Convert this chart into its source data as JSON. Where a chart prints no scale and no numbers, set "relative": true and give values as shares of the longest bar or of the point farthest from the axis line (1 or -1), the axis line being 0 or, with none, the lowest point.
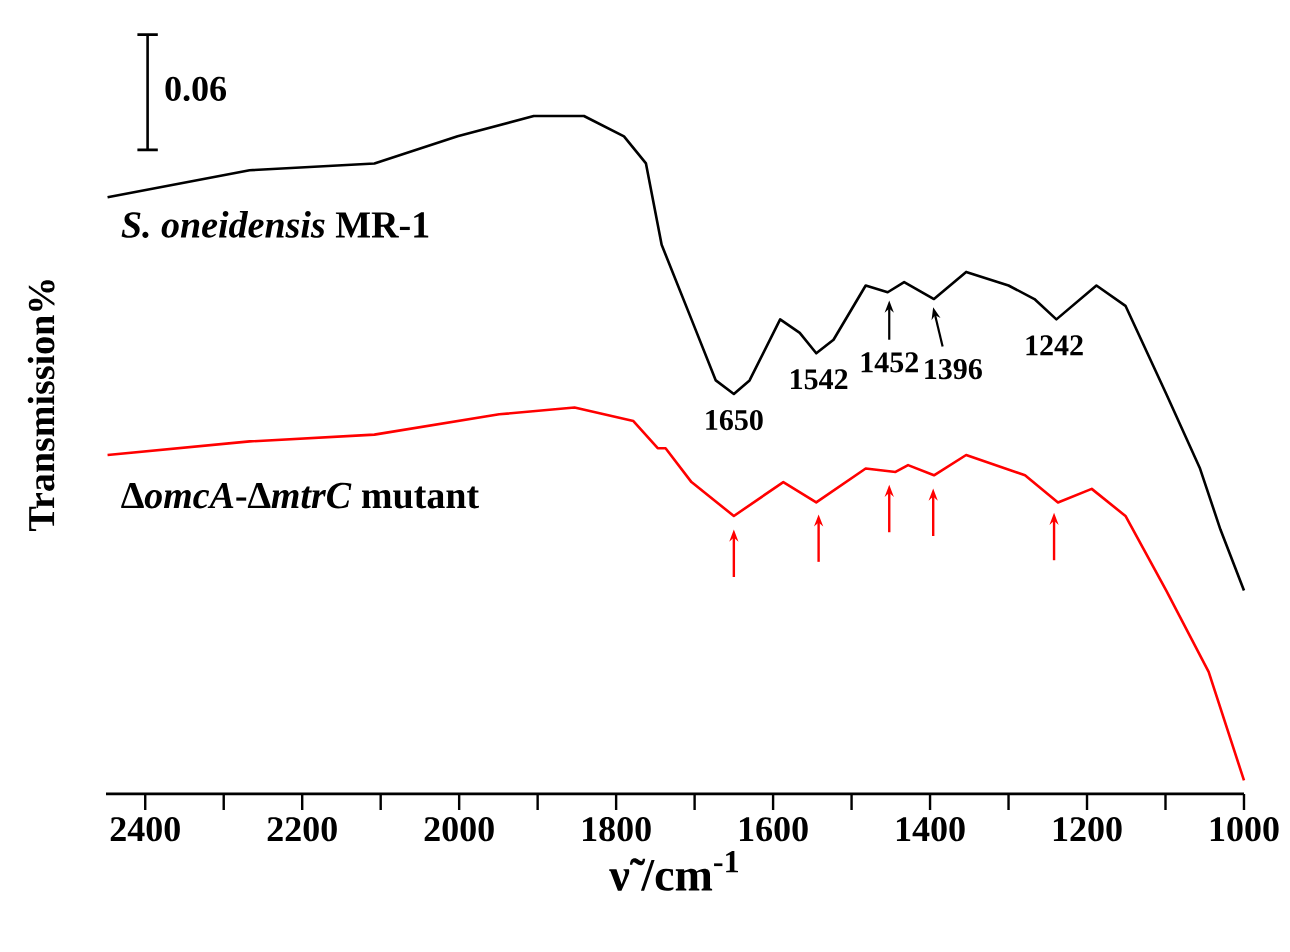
{
  "chart_data": {
    "type": "line",
    "relative": true,
    "xlabel": "ν̃ /cm$^{-1}$",
    "ylabel": "Transmission%",
    "xlim": [
      2450,
      1000
    ],
    "xticks": [
      2400,
      {
        "value": 2300,
        "label": null
      },
      2200,
      {
        "value": 2100,
        "label": null
      },
      2000,
      {
        "value": 1900,
        "label": null
      },
      1800,
      {
        "value": 1700,
        "label": null
      },
      1600,
      {
        "value": 1500,
        "label": null
      },
      1400,
      {
        "value": 1300,
        "label": null
      },
      1200,
      {
        "value": 1100,
        "label": null
      },
      1000
    ],
    "legend": false,
    "marker": "none",
    "line_style": "solid",
    "series": [
      {
        "name": "*S. oneidensis* MR-1",
        "color": "#000000",
        "x": [
          2448,
          2267,
          2108,
          2002,
          1905,
          1841,
          1790,
          1762,
          1742,
          1704,
          1673,
          1650,
          1630,
          1591,
          1566,
          1545,
          1523,
          1482,
          1454,
          1433,
          1395,
          1354,
          1300,
          1267,
          1239,
          1188,
          1151,
          1099,
          1056,
          1030,
          1000
        ],
        "values": [
          0.88,
          0.92,
          0.93,
          0.97,
          1.0,
          1.0,
          0.97,
          0.93,
          0.81,
          0.7,
          0.61,
          0.59,
          0.61,
          0.7,
          0.68,
          0.65,
          0.67,
          0.75,
          0.74,
          0.755,
          0.73,
          0.77,
          0.75,
          0.73,
          0.7,
          0.75,
          0.72,
          0.59,
          0.48,
          0.39,
          0.3
        ]
      },
      {
        "name": "∆*omcA*-∆*mtrC* mutant",
        "color": "#ff0000",
        "x": [
          2448,
          2267,
          2108,
          1949,
          1853,
          1778,
          1747,
          1737,
          1704,
          1650,
          1587,
          1545,
          1482,
          1444,
          1428,
          1395,
          1354,
          1279,
          1237,
          1194,
          1151,
          1099,
          1045,
          1000
        ],
        "values": [
          0.5,
          0.52,
          0.53,
          0.56,
          0.57,
          0.55,
          0.51,
          0.51,
          0.46,
          0.41,
          0.46,
          0.43,
          0.48,
          0.475,
          0.485,
          0.47,
          0.5,
          0.47,
          0.43,
          0.45,
          0.41,
          0.3,
          0.18,
          0.02
        ]
      }
    ],
    "annotations": [
      "0.06",
      {
        "text": "1650",
        "x": 1650,
        "y": 0.59
      },
      {
        "text": "1542",
        "x": 1542,
        "y": 0.65
      },
      {
        "text": "1452",
        "x": 1452,
        "y": 0.74
      },
      {
        "text": "1396",
        "x": 1396,
        "y": 0.73
      },
      {
        "text": "1242",
        "x": 1242,
        "y": 0.7
      }
    ]
  }
}
